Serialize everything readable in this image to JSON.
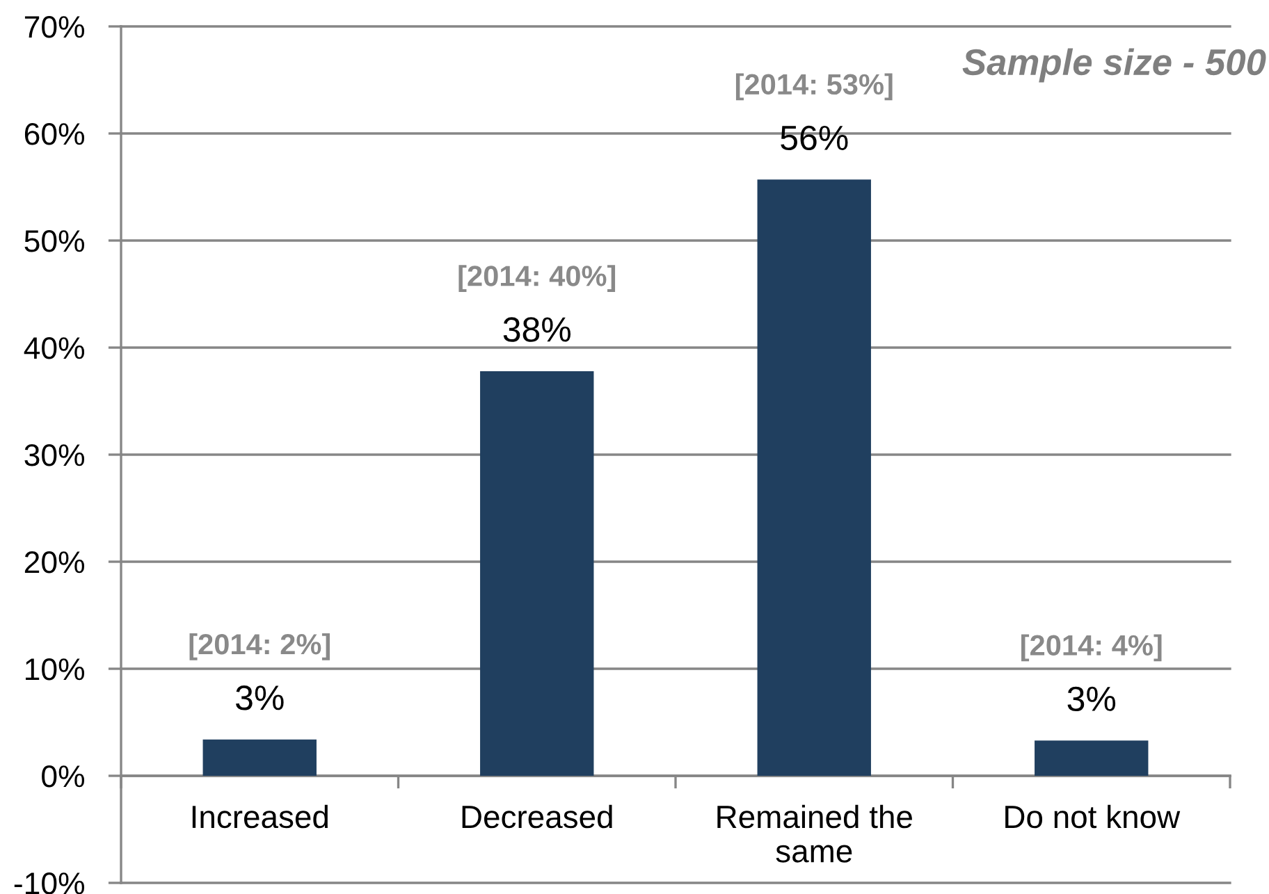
{
  "chart_data": {
    "type": "bar",
    "categories": [
      "Increased",
      "Decreased",
      "Remained the\nsame",
      "Do not know"
    ],
    "values": [
      3.4,
      37.8,
      55.7,
      3.3
    ],
    "value_labels": [
      "3%",
      "38%",
      "56%",
      "3%"
    ],
    "color": "#203f5f",
    "ylim": [
      -10,
      70
    ],
    "yticks": [
      {
        "value": -10,
        "label": "-10%"
      },
      {
        "value": 0,
        "label": "0%"
      },
      {
        "value": 10,
        "label": "10%"
      },
      {
        "value": 20,
        "label": "20%"
      },
      {
        "value": 30,
        "label": "30%"
      },
      {
        "value": 40,
        "label": "40%"
      },
      {
        "value": 50,
        "label": "50%"
      },
      {
        "value": 60,
        "label": "60%"
      },
      {
        "value": 70,
        "label": "70%"
      }
    ],
    "grid": "y",
    "annotations": [
      "Sample size - 500",
      "[2014: 2%]",
      "[2014: 40%]",
      "[2014: 53%]",
      "[2014: 4%]"
    ]
  }
}
